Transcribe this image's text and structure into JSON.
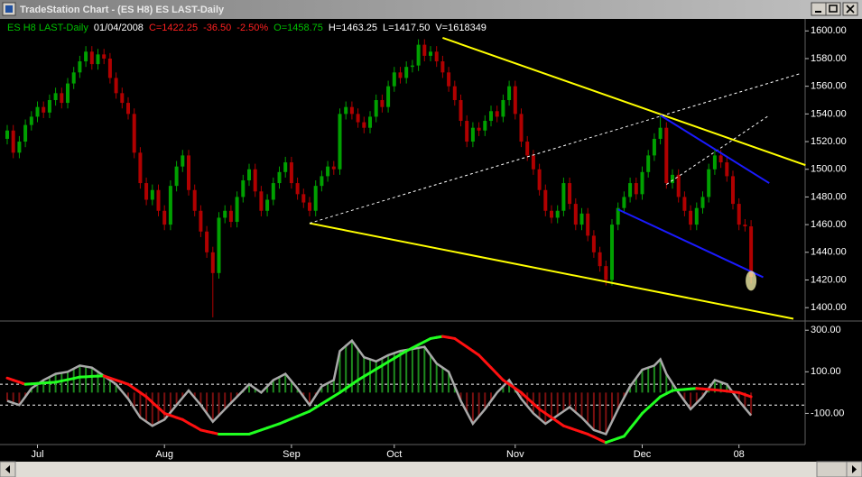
{
  "window": {
    "title": "TradeStation Chart - (ES H8) ES LAST-Daily"
  },
  "chart_data": [
    {
      "type": "candlestick",
      "header": [
        {
          "text": "ES H8 LAST-Daily",
          "color": "#00c000"
        },
        {
          "text": "01/04/2008",
          "color": "#ffffff"
        },
        {
          "text": "C=1422.25",
          "color": "#ff2020"
        },
        {
          "text": "-36.50",
          "color": "#ff2020"
        },
        {
          "text": "-2.50%",
          "color": "#ff2020"
        },
        {
          "text": "O=1458.75",
          "color": "#00c000"
        },
        {
          "text": "H=1463.25",
          "color": "#ffffff"
        },
        {
          "text": "L=1417.50",
          "color": "#ffffff"
        },
        {
          "text": "V=1618349",
          "color": "#ffffff"
        }
      ],
      "categories": [
        null,
        null,
        null,
        null,
        null,
        "Jul",
        null,
        null,
        null,
        null,
        null,
        null,
        null,
        null,
        null,
        null,
        null,
        null,
        null,
        null,
        null,
        null,
        null,
        null,
        null,
        null,
        "Aug",
        null,
        null,
        null,
        null,
        null,
        null,
        null,
        null,
        null,
        null,
        null,
        null,
        null,
        null,
        null,
        null,
        null,
        null,
        null,
        null,
        "Sep",
        null,
        null,
        null,
        null,
        null,
        null,
        null,
        null,
        null,
        null,
        null,
        null,
        null,
        null,
        null,
        null,
        "Oct",
        null,
        null,
        null,
        null,
        null,
        null,
        null,
        null,
        null,
        null,
        null,
        null,
        null,
        null,
        null,
        null,
        null,
        null,
        null,
        "Nov",
        null,
        null,
        null,
        null,
        null,
        null,
        null,
        null,
        null,
        null,
        null,
        null,
        null,
        null,
        null,
        null,
        null,
        null,
        null,
        null,
        "Dec",
        null,
        null,
        null,
        null,
        null,
        null,
        null,
        null,
        null,
        null,
        null,
        null,
        null,
        null,
        null,
        "08",
        null,
        null
      ],
      "open": [
        1522,
        1528,
        1512,
        1520,
        1532,
        1538,
        1545,
        1541,
        1550,
        1555,
        1548,
        1562,
        1570,
        1578,
        1585,
        1576,
        1583,
        1580,
        1566,
        1555,
        1548,
        1540,
        1512,
        1490,
        1478,
        1485,
        1470,
        1460,
        1488,
        1502,
        1510,
        1485,
        1470,
        1455,
        1440,
        1425,
        1465,
        1470,
        1462,
        1480,
        1492,
        1500,
        1484,
        1470,
        1478,
        1490,
        1498,
        1505,
        1490,
        1482,
        1476,
        1470,
        1488,
        1495,
        1502,
        1500,
        1540,
        1545,
        1540,
        1534,
        1530,
        1538,
        1550,
        1545,
        1560,
        1570,
        1566,
        1574,
        1575,
        1590,
        1582,
        1585,
        1578,
        1570,
        1560,
        1550,
        1535,
        1520,
        1530,
        1528,
        1535,
        1542,
        1538,
        1550,
        1560,
        1540,
        1520,
        1510,
        1500,
        1485,
        1470,
        1465,
        1470,
        1490,
        1475,
        1460,
        1468,
        1452,
        1440,
        1430,
        1420,
        1460,
        1472,
        1480,
        1490,
        1482,
        1498,
        1510,
        1522,
        1530,
        1490,
        1496,
        1480,
        1470,
        1460,
        1472,
        1480,
        1500,
        1510,
        1505,
        1495,
        1475,
        1460,
        1458.75
      ],
      "high": [
        1532,
        1532,
        1524,
        1536,
        1542,
        1549,
        1549,
        1554,
        1559,
        1559,
        1566,
        1574,
        1582,
        1589,
        1589,
        1587,
        1587,
        1584,
        1570,
        1559,
        1552,
        1544,
        1516,
        1494,
        1489,
        1489,
        1474,
        1492,
        1506,
        1514,
        1514,
        1489,
        1474,
        1459,
        1444,
        1469,
        1474,
        1474,
        1484,
        1496,
        1504,
        1504,
        1488,
        1482,
        1494,
        1502,
        1509,
        1509,
        1494,
        1486,
        1480,
        1492,
        1499,
        1506,
        1506,
        1544,
        1549,
        1549,
        1544,
        1538,
        1542,
        1554,
        1554,
        1564,
        1574,
        1574,
        1578,
        1579,
        1594,
        1594,
        1589,
        1589,
        1582,
        1574,
        1564,
        1554,
        1539,
        1534,
        1534,
        1539,
        1546,
        1546,
        1554,
        1564,
        1564,
        1544,
        1524,
        1514,
        1504,
        1489,
        1474,
        1474,
        1494,
        1494,
        1479,
        1472,
        1472,
        1456,
        1444,
        1434,
        1464,
        1476,
        1484,
        1494,
        1494,
        1502,
        1514,
        1526,
        1538,
        1534,
        1500,
        1500,
        1484,
        1474,
        1476,
        1484,
        1504,
        1514,
        1514,
        1509,
        1499,
        1479,
        1464,
        1463.25
      ],
      "low": [
        1518,
        1508,
        1508,
        1516,
        1528,
        1534,
        1537,
        1537,
        1546,
        1544,
        1544,
        1558,
        1566,
        1574,
        1572,
        1572,
        1576,
        1562,
        1551,
        1544,
        1536,
        1508,
        1486,
        1474,
        1474,
        1466,
        1456,
        1456,
        1484,
        1498,
        1481,
        1466,
        1451,
        1436,
        1393,
        1421,
        1461,
        1458,
        1458,
        1476,
        1488,
        1480,
        1466,
        1466,
        1474,
        1486,
        1494,
        1486,
        1478,
        1472,
        1466,
        1466,
        1484,
        1491,
        1496,
        1496,
        1536,
        1536,
        1530,
        1526,
        1526,
        1534,
        1541,
        1541,
        1556,
        1562,
        1562,
        1570,
        1571,
        1578,
        1578,
        1574,
        1566,
        1556,
        1546,
        1531,
        1516,
        1516,
        1524,
        1524,
        1531,
        1534,
        1534,
        1546,
        1536,
        1516,
        1506,
        1496,
        1481,
        1466,
        1461,
        1461,
        1466,
        1471,
        1456,
        1456,
        1448,
        1436,
        1426,
        1416,
        1416,
        1456,
        1468,
        1476,
        1478,
        1478,
        1494,
        1506,
        1518,
        1486,
        1486,
        1476,
        1466,
        1456,
        1456,
        1468,
        1476,
        1496,
        1501,
        1491,
        1471,
        1456,
        1455,
        1417.5
      ],
      "close": [
        1528,
        1512,
        1520,
        1532,
        1538,
        1545,
        1541,
        1550,
        1555,
        1548,
        1562,
        1570,
        1578,
        1585,
        1576,
        1583,
        1580,
        1566,
        1555,
        1548,
        1540,
        1512,
        1490,
        1478,
        1485,
        1470,
        1460,
        1488,
        1502,
        1510,
        1485,
        1470,
        1455,
        1440,
        1425,
        1465,
        1470,
        1462,
        1480,
        1492,
        1500,
        1484,
        1470,
        1478,
        1490,
        1498,
        1505,
        1490,
        1482,
        1476,
        1470,
        1488,
        1495,
        1502,
        1500,
        1540,
        1545,
        1540,
        1534,
        1530,
        1538,
        1550,
        1545,
        1560,
        1570,
        1566,
        1574,
        1575,
        1590,
        1582,
        1585,
        1578,
        1570,
        1560,
        1550,
        1535,
        1520,
        1530,
        1528,
        1535,
        1542,
        1538,
        1550,
        1560,
        1540,
        1520,
        1510,
        1500,
        1485,
        1470,
        1465,
        1470,
        1490,
        1475,
        1460,
        1468,
        1452,
        1440,
        1430,
        1420,
        1460,
        1472,
        1480,
        1490,
        1482,
        1498,
        1510,
        1522,
        1530,
        1490,
        1496,
        1480,
        1470,
        1460,
        1472,
        1480,
        1500,
        1510,
        1505,
        1495,
        1475,
        1460,
        1458.75,
        1422.25
      ],
      "up_color": "#00a000",
      "down_color": "#b00000",
      "ylim": [
        1391,
        1608
      ],
      "yticks": [
        {
          "value": 1400,
          "label": "1400.00"
        },
        {
          "value": 1420,
          "label": "1420.00"
        },
        {
          "value": 1440,
          "label": "1440.00"
        },
        {
          "value": 1460,
          "label": "1460.00"
        },
        {
          "value": 1480,
          "label": "1480.00"
        },
        {
          "value": 1500,
          "label": "1500.00"
        },
        {
          "value": 1520,
          "label": "1520.00"
        },
        {
          "value": 1540,
          "label": "1540.00"
        },
        {
          "value": 1560,
          "label": "1560.00"
        },
        {
          "value": 1580,
          "label": "1580.00"
        },
        {
          "value": 1600,
          "label": "1600.00"
        }
      ],
      "trendlines": [
        {
          "color": "#ffff00",
          "dashed": false,
          "points": [
            [
              72,
              1595
            ],
            [
              132,
              1503
            ]
          ]
        },
        {
          "color": "#ffff00",
          "dashed": false,
          "points": [
            [
              50,
              1461
            ],
            [
              130,
              1392
            ]
          ]
        },
        {
          "color": "#ffffff",
          "dashed": true,
          "points": [
            [
              50,
              1461
            ],
            [
              131,
              1569
            ]
          ]
        },
        {
          "color": "#ffffff",
          "dashed": true,
          "points": [
            [
              109,
              1489
            ],
            [
              126,
              1539
            ]
          ]
        },
        {
          "color": "#1a1aff",
          "dashed": false,
          "points": [
            [
              108,
              1539
            ],
            [
              126,
              1490
            ]
          ]
        },
        {
          "color": "#1a1aff",
          "dashed": false,
          "points": [
            [
              101,
              1471
            ],
            [
              125,
              1422
            ]
          ]
        }
      ]
    },
    {
      "type": "indicator",
      "values": [
        -40,
        -50,
        -60,
        -20,
        20,
        40,
        60,
        75,
        90,
        95,
        100,
        115,
        130,
        125,
        120,
        100,
        80,
        60,
        40,
        5,
        -30,
        -75,
        -120,
        -140,
        -160,
        -145,
        -130,
        -95,
        -60,
        -25,
        10,
        -25,
        -60,
        -100,
        -140,
        -110,
        -80,
        -50,
        -20,
        10,
        40,
        20,
        0,
        30,
        60,
        75,
        90,
        55,
        20,
        -20,
        -60,
        -15,
        30,
        45,
        60,
        200,
        225,
        250,
        210,
        170,
        160,
        150,
        165,
        180,
        190,
        200,
        205,
        210,
        215,
        220,
        180,
        140,
        120,
        100,
        30,
        -40,
        -95,
        -150,
        -115,
        -80,
        -40,
        0,
        30,
        60,
        15,
        -30,
        -65,
        -100,
        -125,
        -150,
        -130,
        -110,
        -90,
        -70,
        -95,
        -120,
        -150,
        -180,
        -190,
        -200,
        -140,
        -80,
        -25,
        30,
        70,
        110,
        120,
        130,
        160,
        90,
        45,
        0,
        -40,
        -80,
        -50,
        -20,
        20,
        60,
        50,
        40,
        0,
        -40,
        -75,
        -110
      ],
      "signal": [
        70,
        60,
        50,
        40,
        42,
        44,
        46,
        48,
        50,
        56,
        62,
        68,
        75,
        76,
        78,
        79,
        80,
        70,
        60,
        50,
        40,
        20,
        0,
        -20,
        -47,
        -73,
        -100,
        -110,
        -120,
        -130,
        -147,
        -163,
        -180,
        -187,
        -193,
        -200,
        -200,
        -200,
        -200,
        -200,
        -200,
        -190,
        -180,
        -170,
        -160,
        -150,
        -138,
        -126,
        -114,
        -102,
        -90,
        -72,
        -54,
        -36,
        -18,
        0,
        20,
        40,
        60,
        78,
        95,
        113,
        130,
        148,
        165,
        183,
        200,
        215,
        230,
        245,
        260,
        265,
        270,
        265,
        260,
        240,
        220,
        200,
        180,
        150,
        120,
        90,
        60,
        40,
        20,
        0,
        -27,
        -53,
        -80,
        -100,
        -120,
        -140,
        -160,
        -170,
        -180,
        -190,
        -200,
        -213,
        -227,
        -240,
        -230,
        -220,
        -210,
        -173,
        -137,
        -100,
        -73,
        -47,
        -20,
        -5,
        10,
        13,
        15,
        18,
        20,
        18,
        15,
        13,
        10,
        7,
        3,
        0,
        -10,
        -20
      ],
      "color": "#a8a8a8",
      "positive_color": "#1e8a1e",
      "negative_color": "#7a1010",
      "rising_color": "#20ff20",
      "falling_color": "#ff1010",
      "levels": [
        40,
        -60
      ],
      "ylim": [
        -250,
        340
      ],
      "yticks": [
        {
          "value": 300,
          "label": "300.00"
        },
        {
          "value": 100,
          "label": "100.00"
        },
        {
          "value": -100,
          "label": "-100.00"
        }
      ]
    }
  ]
}
